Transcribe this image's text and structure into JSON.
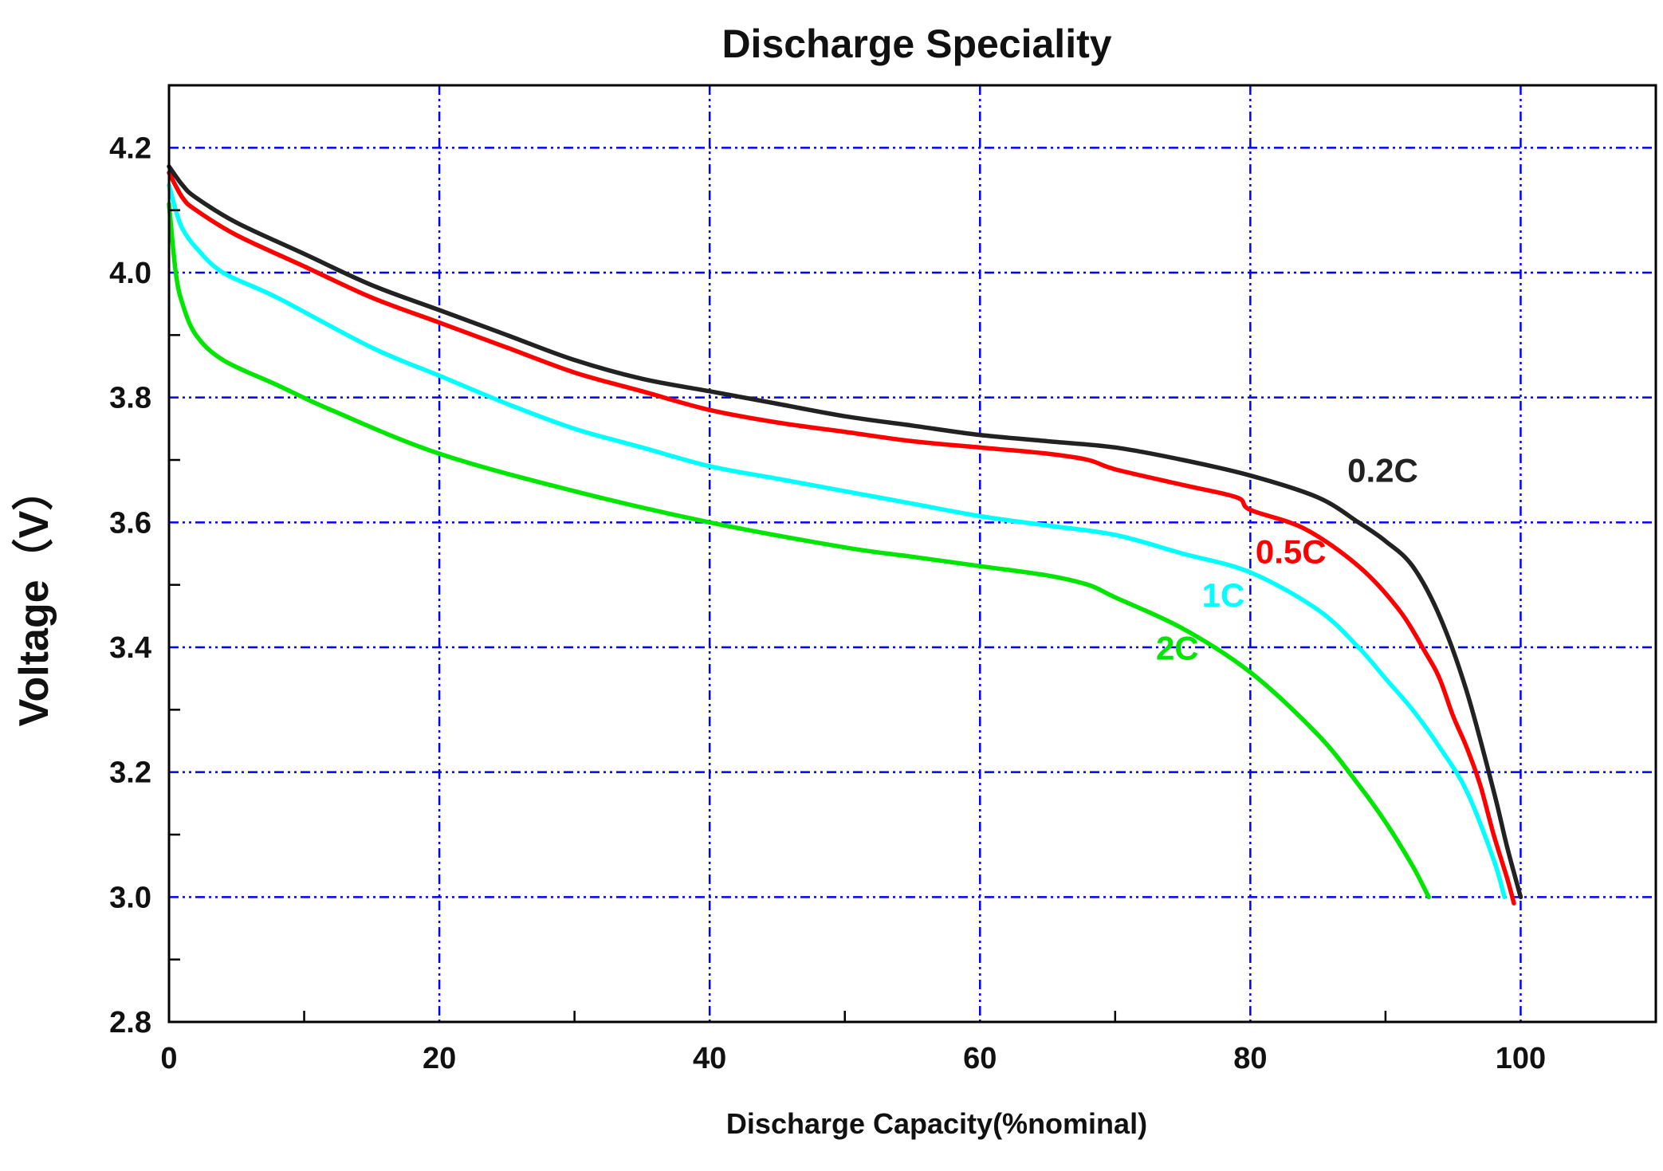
{
  "chart_data": {
    "type": "line",
    "title": "Discharge Speciality",
    "xlabel": "Discharge Capacity(%nominal)",
    "ylabel": "Voltage（V）",
    "xlim": [
      0,
      110
    ],
    "ylim": [
      2.8,
      4.3
    ],
    "x_ticks": [
      0,
      20,
      40,
      60,
      80,
      100
    ],
    "x_tick_labels": [
      "0",
      "20",
      "40",
      "60",
      "80",
      "100"
    ],
    "y_ticks": [
      2.8,
      3.0,
      3.2,
      3.4,
      3.6,
      3.8,
      4.0,
      4.2
    ],
    "y_tick_labels": [
      "2.8",
      "3.0",
      "3.2",
      "3.4",
      "3.6",
      "3.8",
      "4.0",
      "4.2"
    ],
    "grid": true,
    "grid_color": "#0000ff",
    "series": [
      {
        "name": "0.2C",
        "color": "#222222",
        "x": [
          0,
          1,
          2,
          5,
          10,
          15,
          20,
          25,
          30,
          35,
          40,
          45,
          50,
          55,
          60,
          65,
          70,
          75,
          80,
          85,
          88,
          90,
          92,
          94,
          96,
          98,
          99,
          100
        ],
        "y": [
          4.17,
          4.14,
          4.12,
          4.08,
          4.03,
          3.98,
          3.94,
          3.9,
          3.86,
          3.83,
          3.81,
          3.79,
          3.77,
          3.755,
          3.74,
          3.73,
          3.72,
          3.7,
          3.675,
          3.64,
          3.6,
          3.57,
          3.53,
          3.45,
          3.33,
          3.17,
          3.08,
          3.0
        ]
      },
      {
        "name": "0.5C",
        "color": "#ff0000",
        "x": [
          0,
          1,
          2,
          5,
          10,
          15,
          20,
          25,
          30,
          35,
          40,
          45,
          50,
          55,
          60,
          65,
          68,
          70,
          75,
          79,
          80,
          84,
          88,
          91,
          93,
          94,
          95,
          96,
          97,
          98,
          99,
          99.5
        ],
        "y": [
          4.16,
          4.12,
          4.1,
          4.06,
          4.01,
          3.96,
          3.92,
          3.88,
          3.84,
          3.81,
          3.78,
          3.76,
          3.745,
          3.73,
          3.72,
          3.71,
          3.7,
          3.685,
          3.66,
          3.64,
          3.62,
          3.59,
          3.53,
          3.46,
          3.39,
          3.35,
          3.29,
          3.24,
          3.18,
          3.1,
          3.03,
          2.99
        ]
      },
      {
        "name": "1C",
        "color": "#00ffff",
        "x": [
          0,
          0.5,
          1,
          2,
          4,
          8,
          15,
          20,
          25,
          30,
          35,
          40,
          45,
          50,
          55,
          60,
          65,
          70,
          75,
          80,
          85,
          88,
          90,
          92,
          94,
          96,
          98,
          98.8
        ],
        "y": [
          4.14,
          4.1,
          4.07,
          4.04,
          4.0,
          3.96,
          3.88,
          3.835,
          3.79,
          3.75,
          3.72,
          3.69,
          3.67,
          3.65,
          3.63,
          3.61,
          3.595,
          3.58,
          3.55,
          3.52,
          3.46,
          3.4,
          3.35,
          3.3,
          3.24,
          3.17,
          3.06,
          3.0
        ]
      },
      {
        "name": "2C",
        "color": "#00e600",
        "x": [
          0,
          0.5,
          1,
          2,
          4,
          8,
          12,
          20,
          30,
          40,
          50,
          55,
          60,
          65,
          68,
          70,
          75,
          80,
          85,
          88,
          90,
          92,
          93.2
        ],
        "y": [
          4.11,
          4.0,
          3.95,
          3.9,
          3.86,
          3.82,
          3.78,
          3.71,
          3.65,
          3.6,
          3.56,
          3.545,
          3.53,
          3.515,
          3.5,
          3.48,
          3.43,
          3.36,
          3.26,
          3.18,
          3.12,
          3.05,
          3.0
        ]
      }
    ],
    "annotations": [
      {
        "text": "0.2C",
        "x": 89.8,
        "y": 3.665,
        "color": "#222222"
      },
      {
        "text": "0.5C",
        "x": 83.0,
        "y": 3.535,
        "color": "#ff0000"
      },
      {
        "text": "1C",
        "x": 78.0,
        "y": 3.465,
        "color": "#00ffff"
      },
      {
        "text": "2C",
        "x": 74.6,
        "y": 3.38,
        "color": "#00e600"
      }
    ]
  }
}
